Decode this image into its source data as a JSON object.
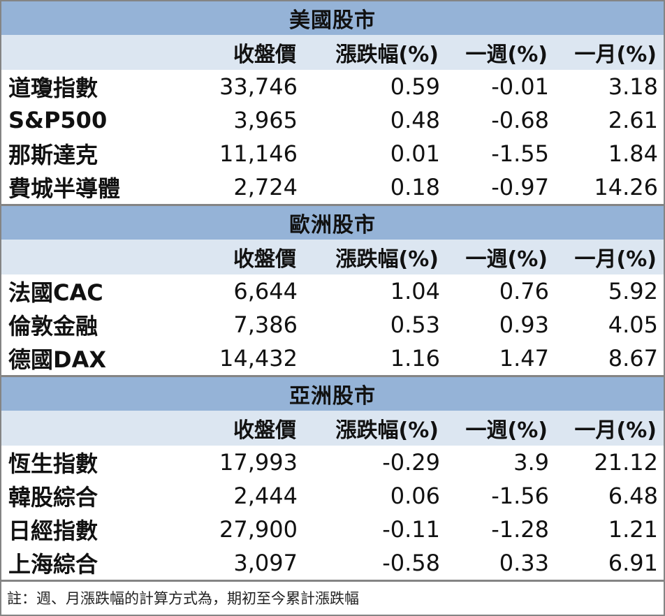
{
  "columns": {
    "name": "",
    "close": "收盤價",
    "change": "漲跌幅(%)",
    "week": "一週(%)",
    "month": "一月(%)"
  },
  "sections": [
    {
      "title": "美國股市",
      "rows": [
        {
          "name": "道瓊指數",
          "close": "33,746",
          "change": "0.59",
          "week": "-0.01",
          "month": "3.18"
        },
        {
          "name": "S&P500",
          "close": "3,965",
          "change": "0.48",
          "week": "-0.68",
          "month": "2.61"
        },
        {
          "name": "那斯達克",
          "close": "11,146",
          "change": "0.01",
          "week": "-1.55",
          "month": "1.84"
        },
        {
          "name": "費城半導體",
          "close": "2,724",
          "change": "0.18",
          "week": "-0.97",
          "month": "14.26"
        }
      ]
    },
    {
      "title": "歐洲股市",
      "rows": [
        {
          "name": "法國CAC",
          "close": "6,644",
          "change": "1.04",
          "week": "0.76",
          "month": "5.92"
        },
        {
          "name": "倫敦金融",
          "close": "7,386",
          "change": "0.53",
          "week": "0.93",
          "month": "4.05"
        },
        {
          "name": "德國DAX",
          "close": "14,432",
          "change": "1.16",
          "week": "1.47",
          "month": "8.67"
        }
      ]
    },
    {
      "title": "亞洲股市",
      "rows": [
        {
          "name": "恆生指數",
          "close": "17,993",
          "change": "-0.29",
          "week": "3.9",
          "month": "21.12"
        },
        {
          "name": "韓股綜合",
          "close": "2,444",
          "change": "0.06",
          "week": "-1.56",
          "month": "6.48"
        },
        {
          "name": "日經指數",
          "close": "27,900",
          "change": "-0.11",
          "week": "-1.28",
          "month": "1.21"
        },
        {
          "name": "上海綜合",
          "close": "3,097",
          "change": "-0.58",
          "week": "0.33",
          "month": "6.91"
        }
      ]
    }
  ],
  "note": "註：週、月漲跌幅的計算方式為，期初至今累計漲跌幅",
  "colors": {
    "title_bg": "#95b3d7",
    "header_bg": "#dce6f1",
    "border": "#848484"
  }
}
